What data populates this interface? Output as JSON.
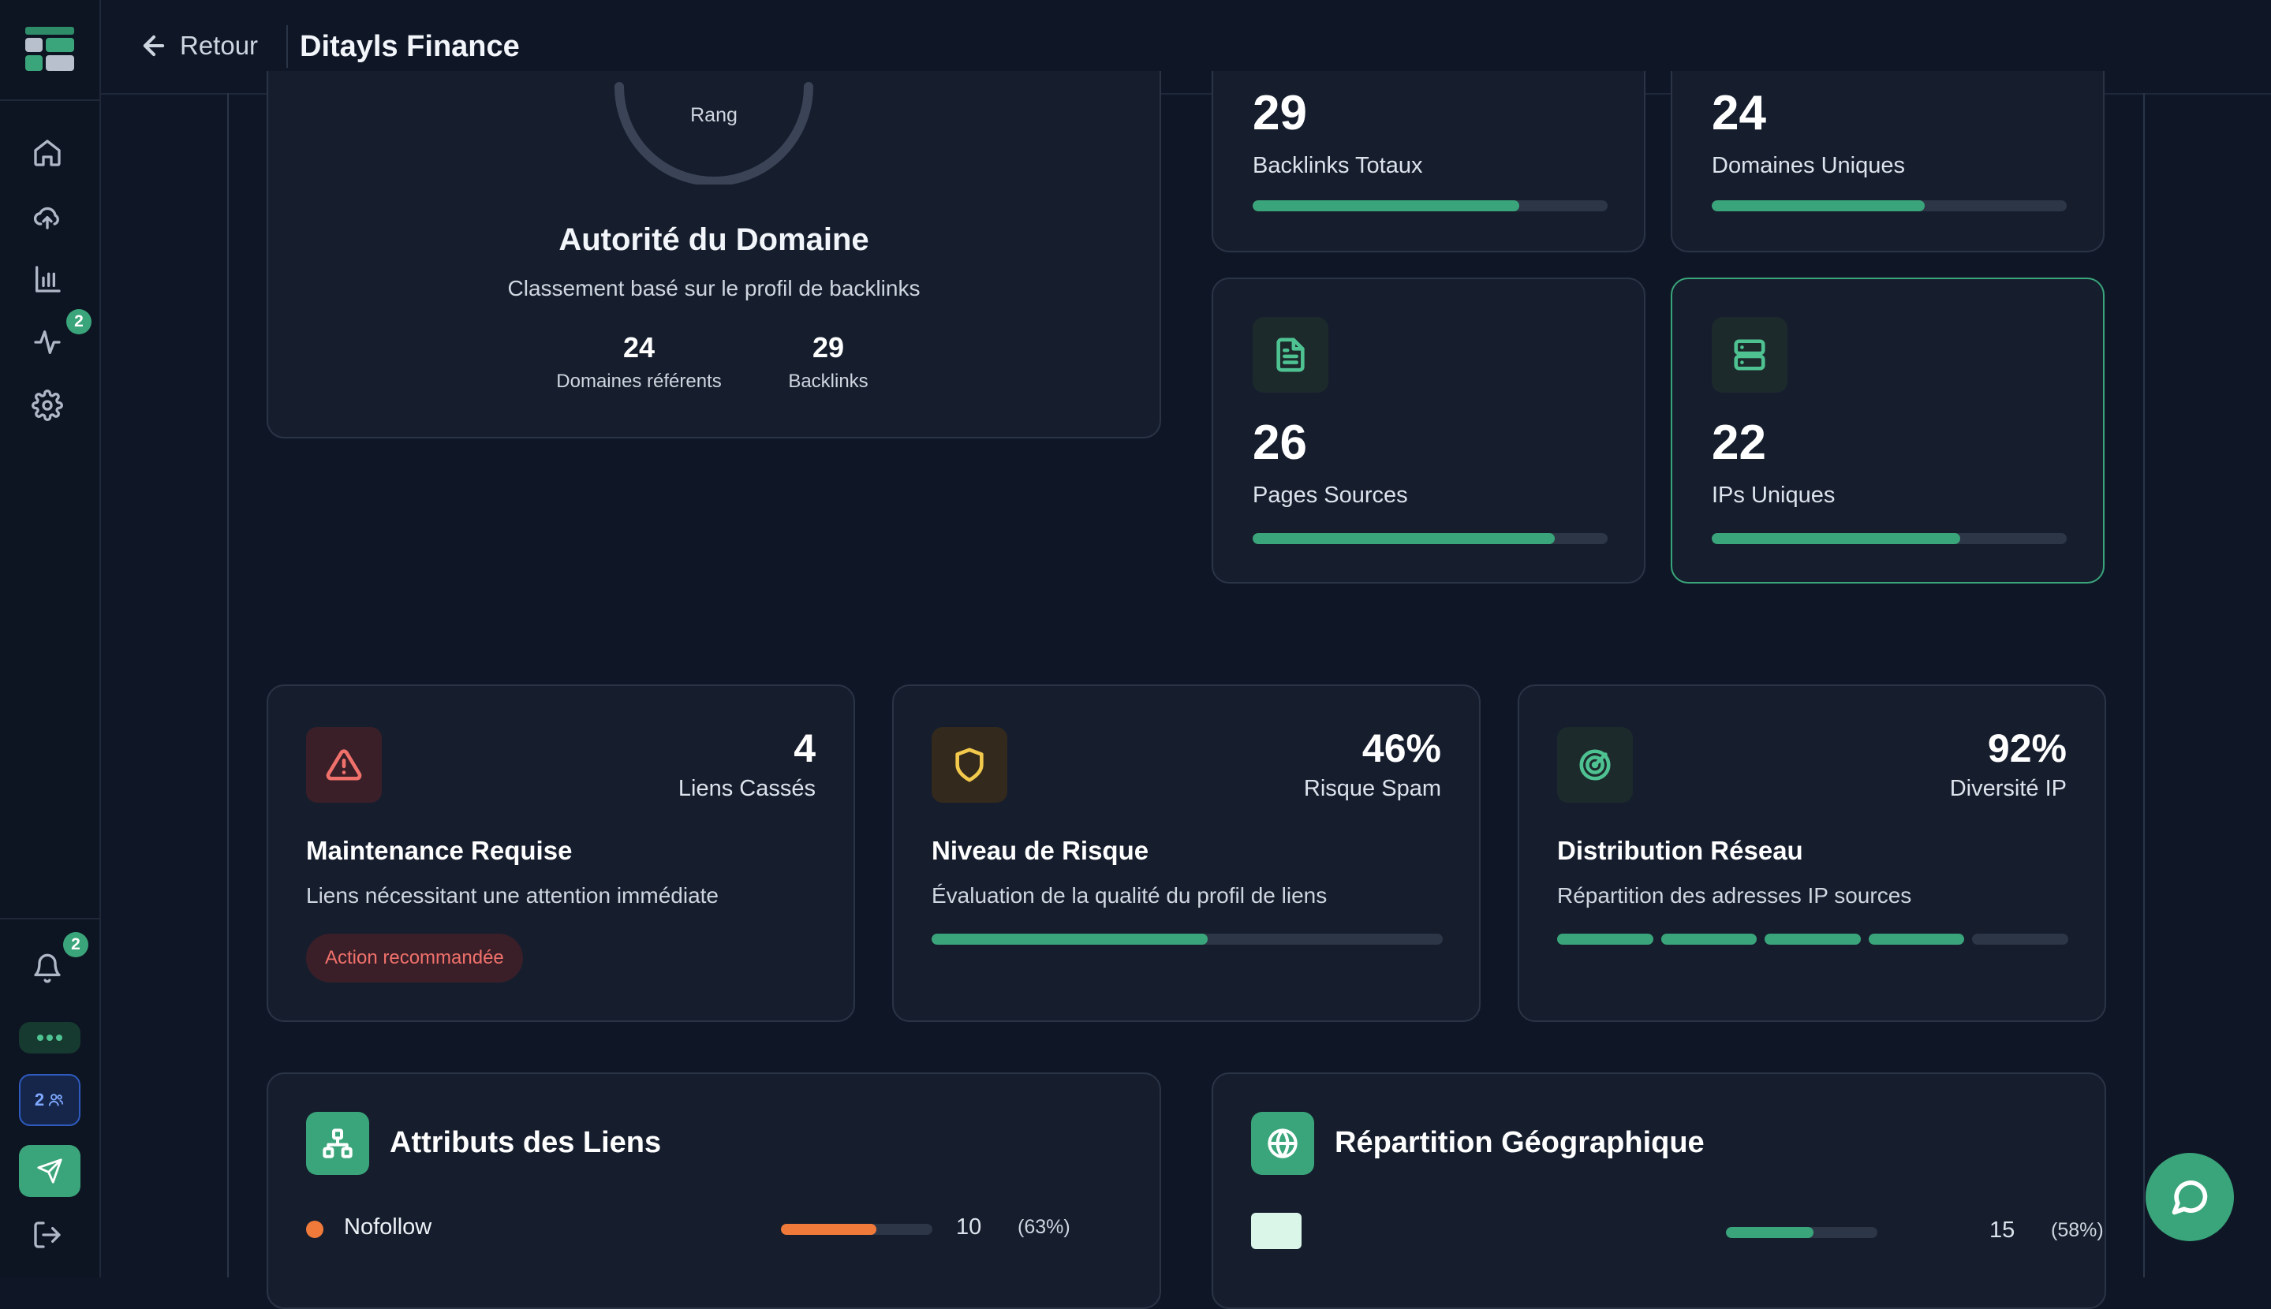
{
  "topbar": {
    "back_label": "Retour",
    "title": "Ditayls Finance"
  },
  "sidebar": {
    "activity_badge": "2",
    "notifications_badge": "2",
    "team_count": "2"
  },
  "authority": {
    "gauge_label": "Rang",
    "title": "Autorité du Domaine",
    "subtitle": "Classement basé sur le profil de backlinks",
    "stats": [
      {
        "value": "24",
        "label": "Domaines référents"
      },
      {
        "value": "29",
        "label": "Backlinks"
      }
    ]
  },
  "metrics": [
    {
      "value": "29",
      "label": "Backlinks Totaux",
      "progress": 0.75
    },
    {
      "value": "24",
      "label": "Domaines Uniques",
      "progress": 0.6
    },
    {
      "value": "26",
      "label": "Pages Sources",
      "progress": 0.85,
      "icon": "document-icon"
    },
    {
      "value": "22",
      "label": "IPs Uniques",
      "progress": 0.7,
      "icon": "server-icon"
    }
  ],
  "insights": [
    {
      "value": "4",
      "value_label": "Liens Cassés",
      "title": "Maintenance Requise",
      "desc": "Liens nécessitant une attention immédiate",
      "tag": "Action recommandée",
      "icon": "warning-icon",
      "color": "#f0716b"
    },
    {
      "value": "46%",
      "value_label": "Risque Spam",
      "title": "Niveau de Risque",
      "desc": "Évaluation de la qualité du profil de liens",
      "progress": 0.54,
      "icon": "shield-icon",
      "color": "#f2c94c"
    },
    {
      "value": "92%",
      "value_label": "Diversité IP",
      "title": "Distribution Réseau",
      "desc": "Répartition des adresses IP sources",
      "segments_filled": 4,
      "segments_total": 5,
      "icon": "radar-icon",
      "color": "#3aa57a"
    }
  ],
  "attributes": {
    "title": "Attributs des Liens",
    "rows": [
      {
        "label": "Nofollow",
        "count": "10",
        "pct": "(63%)",
        "progress": 0.63,
        "color": "#f07a3a"
      }
    ]
  },
  "geo": {
    "title": "Répartition Géographique",
    "rows": [
      {
        "count": "15",
        "pct": "(58%)",
        "progress": 0.58
      }
    ]
  }
}
